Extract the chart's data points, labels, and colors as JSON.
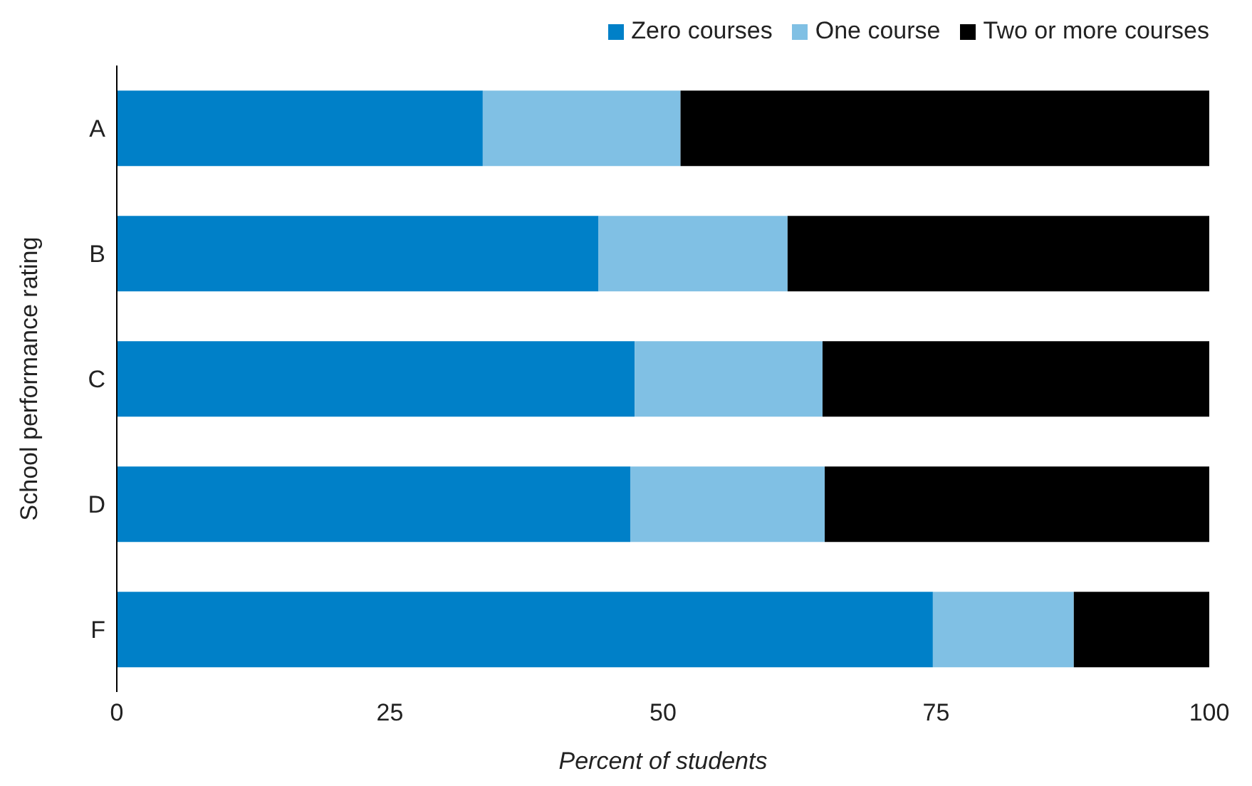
{
  "chart_data": {
    "type": "bar",
    "orientation": "horizontal",
    "stacked": true,
    "xlabel": "Percent of students",
    "ylabel": "School performance rating",
    "categories": [
      "A",
      "B",
      "C",
      "D",
      "F"
    ],
    "series": [
      {
        "name": "Zero courses",
        "color": "#0080c8",
        "values": [
          33.5,
          44.1,
          47.4,
          47.0,
          74.7
        ]
      },
      {
        "name": "One course",
        "color": "#80c0e4",
        "values": [
          18.1,
          17.3,
          17.2,
          17.8,
          12.9
        ]
      },
      {
        "name": "Two or more courses",
        "color": "#000000",
        "values": [
          48.4,
          38.6,
          35.4,
          35.2,
          12.4
        ]
      }
    ],
    "xlim": [
      0,
      100
    ],
    "xticks": [
      0,
      25,
      50,
      75,
      100
    ],
    "legend": "top right"
  }
}
